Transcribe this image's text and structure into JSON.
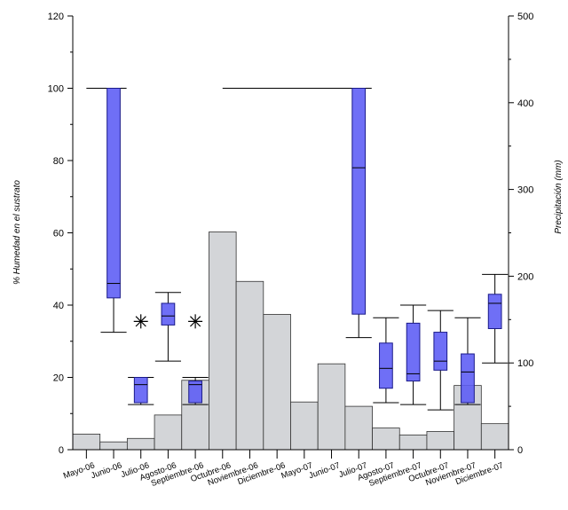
{
  "chart_data": {
    "type": "bar",
    "categories": [
      "Mayo-06",
      "Junio-06",
      "Julio-06",
      "Agosto-06",
      "Septiembre-06",
      "Octubre-06",
      "Noviembre-06",
      "Diciembre-06",
      "Mayo-07",
      "Junio-07",
      "Julio-07",
      "Agosto-07",
      "Septiembre-07",
      "Octubre-07",
      "Noviembre-07",
      "Diciembre-07"
    ],
    "xlabel": "",
    "ylabel": "% Humedad en el sustrato",
    "y2label": "Precipitación (mm)",
    "ylim": [
      0,
      120
    ],
    "y2lim": [
      0,
      500
    ],
    "yticks": [
      0,
      20,
      40,
      60,
      80,
      100,
      120
    ],
    "y2ticks": [
      0,
      100,
      200,
      300,
      400,
      500
    ],
    "grid": false,
    "bar_color": "#d3d5d8",
    "box_color": "#5b5bf5",
    "series": [
      {
        "kind": "bar",
        "axis": "right",
        "values": [
          18,
          9,
          13,
          40,
          80,
          251,
          194,
          156,
          55,
          99,
          50,
          25,
          17,
          21,
          74,
          30
        ]
      },
      {
        "kind": "box",
        "axis": "left",
        "boxes": [
          null,
          {
            "whisker_low": 32.5,
            "q1": 42,
            "median": 46,
            "q3": 100,
            "whisker_high": 100
          },
          {
            "whisker_low": 12.5,
            "q1": 13,
            "median": 18,
            "q3": 20,
            "whisker_high": 20
          },
          {
            "whisker_low": 24.5,
            "q1": 34.5,
            "median": 37,
            "q3": 40.5,
            "whisker_high": 43.5
          },
          {
            "whisker_low": 12.5,
            "q1": 13,
            "median": 18,
            "q3": 19,
            "whisker_high": 20
          },
          null,
          null,
          null,
          null,
          null,
          {
            "whisker_low": 31,
            "q1": 37.5,
            "median": 78,
            "q3": 100,
            "whisker_high": 100
          },
          {
            "whisker_low": 13,
            "q1": 17,
            "median": 22.5,
            "q3": 29.5,
            "whisker_high": 36.5
          },
          {
            "whisker_low": 12.5,
            "q1": 19,
            "median": 21,
            "q3": 35,
            "whisker_high": 40
          },
          {
            "whisker_low": 11,
            "q1": 22,
            "median": 24.5,
            "q3": 32.5,
            "whisker_high": 38.5
          },
          {
            "whisker_low": 12.5,
            "q1": 13,
            "median": 21.5,
            "q3": 26.5,
            "whisker_high": 36.5
          },
          {
            "whisker_low": 24,
            "q1": 33.5,
            "median": 40.5,
            "q3": 43,
            "whisker_high": 48.5
          }
        ]
      },
      {
        "kind": "outlier",
        "axis": "left",
        "points": [
          {
            "category": "Julio-06",
            "value": 35.5
          },
          {
            "category": "Septiembre-06",
            "value": 35.5
          }
        ]
      },
      {
        "kind": "reference-line",
        "axis": "left",
        "value": 100,
        "ranges": [
          [
            "Mayo-06",
            "Junio-06"
          ],
          [
            "Octubre-06",
            "Julio-07"
          ]
        ]
      }
    ]
  }
}
